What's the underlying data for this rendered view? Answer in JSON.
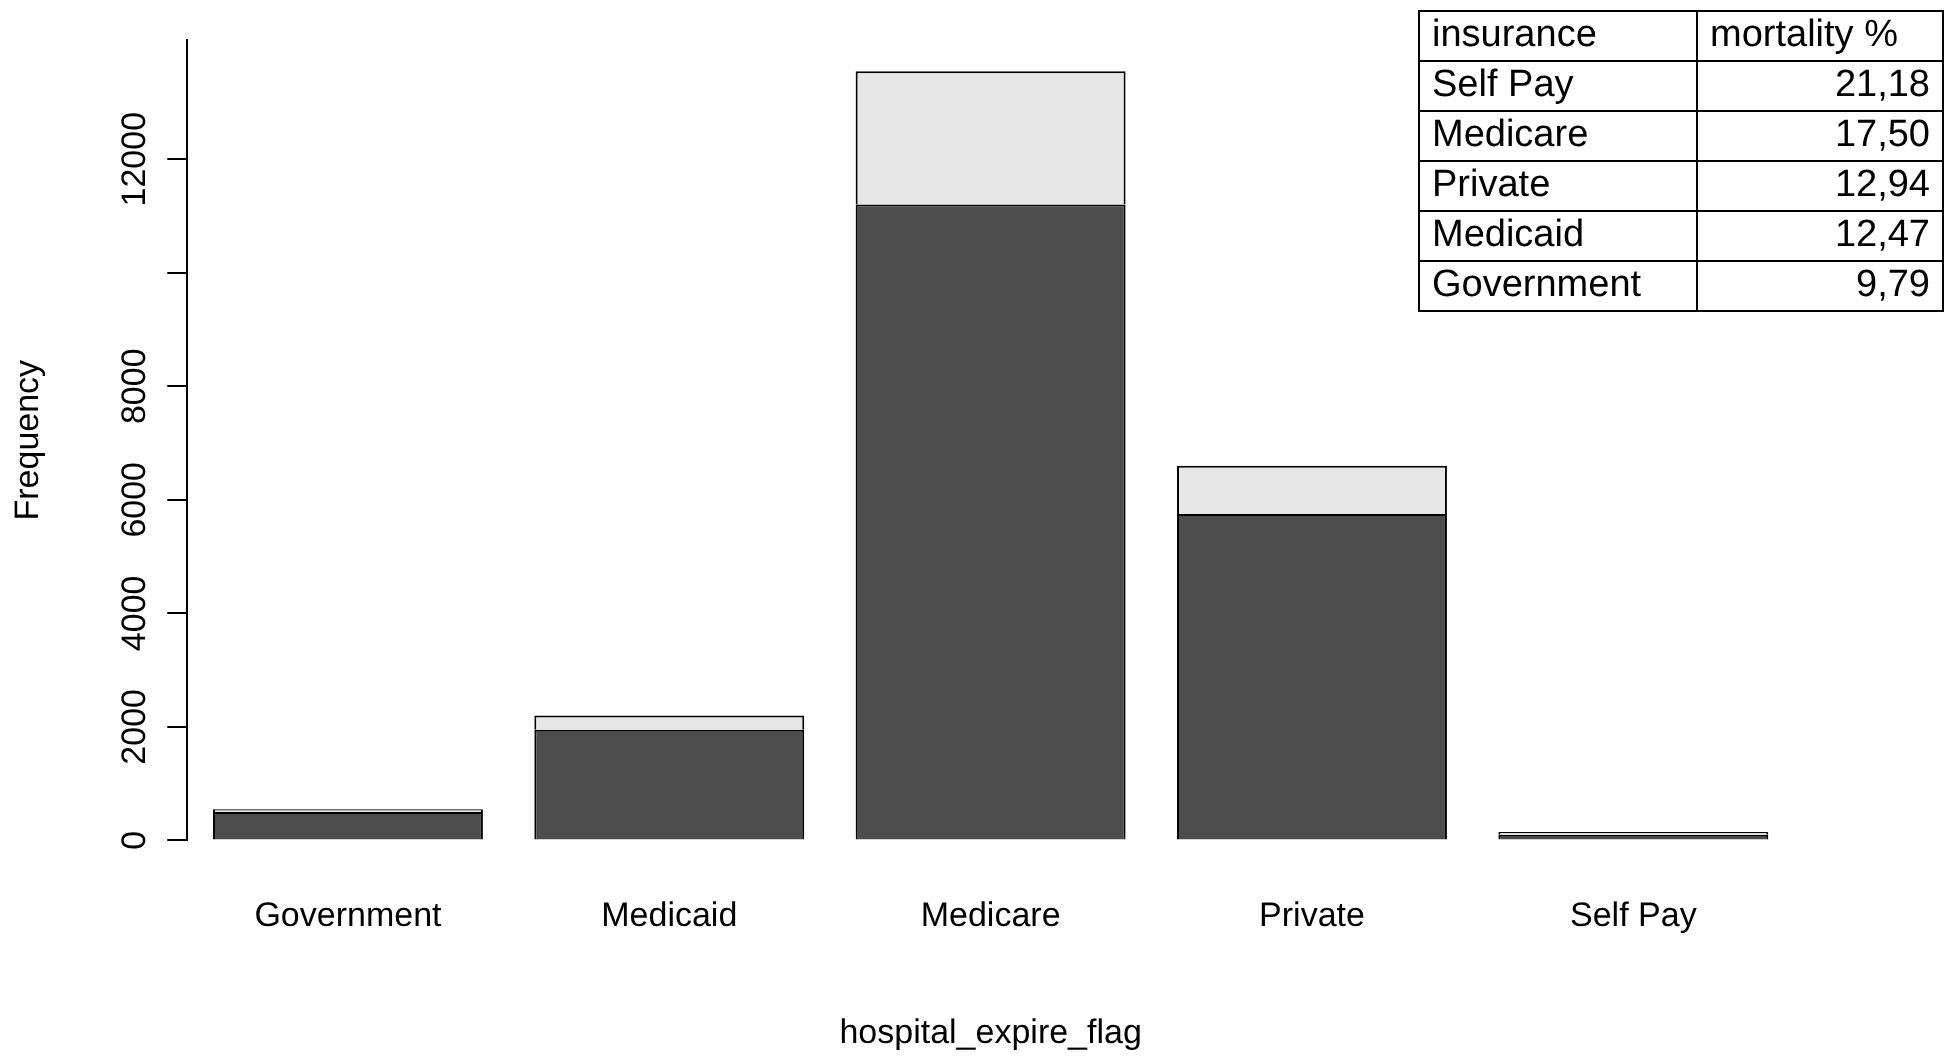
{
  "chart_data": {
    "type": "bar",
    "xlabel": "hospital_expire_flag",
    "ylabel": "Frequency",
    "categories": [
      "Government",
      "Medicaid",
      "Medicare",
      "Private",
      "Self Pay"
    ],
    "stacked": true,
    "series": [
      {
        "color": "#4d4d4d",
        "values": [
          500,
          1950,
          11200,
          5750,
          100
        ]
      },
      {
        "color": "#e6e6e6",
        "values": [
          50,
          250,
          2350,
          850,
          50
        ]
      }
    ],
    "ylim": [
      0,
      14100
    ],
    "yticks": [
      0,
      2000,
      4000,
      6000,
      8000,
      {
        "value": 10000,
        "label": null
      },
      12000
    ],
    "grid": false,
    "legend": false,
    "annotations": [
      "insurance",
      "mortality %",
      "Self Pay",
      "21,18",
      "Medicare",
      "17,50",
      "Private",
      "12,94",
      "Medicaid",
      "12,47",
      "Government",
      "9,79"
    ]
  }
}
